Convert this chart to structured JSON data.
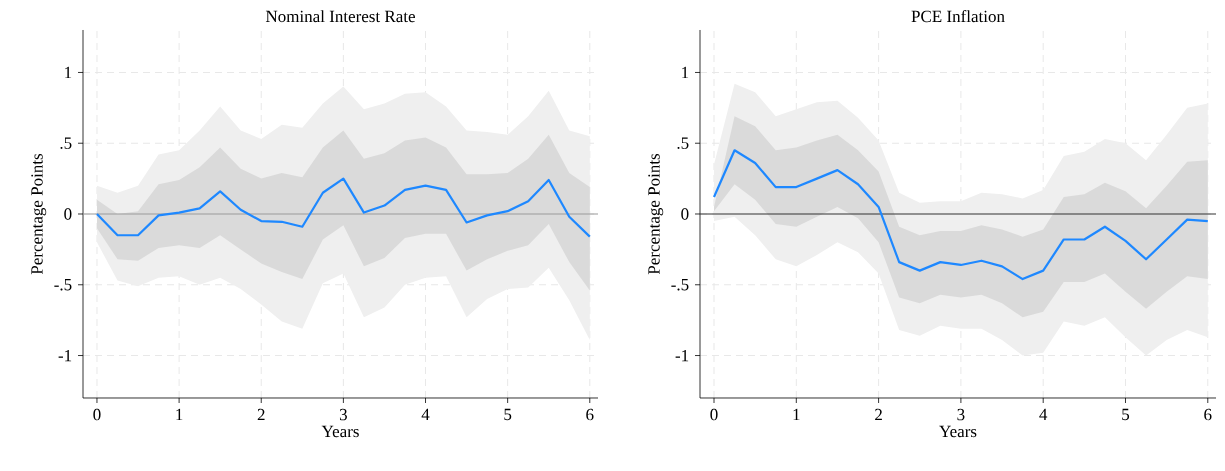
{
  "chart_data": [
    {
      "type": "line",
      "title": "Nominal Interest Rate",
      "xlabel": "Years",
      "ylabel": "Percentage Points",
      "x": [
        0,
        0.25,
        0.5,
        0.75,
        1,
        1.25,
        1.5,
        1.75,
        2,
        2.25,
        2.5,
        2.75,
        3,
        3.25,
        3.5,
        3.75,
        4,
        4.25,
        4.5,
        4.75,
        5,
        5.25,
        5.5,
        5.75,
        6
      ],
      "series": [
        {
          "color": "#efefef",
          "values": [
            null,
            null,
            null,
            null,
            null,
            null,
            null,
            null,
            null,
            null,
            null,
            null,
            null,
            null,
            null,
            null,
            null,
            null,
            null,
            null,
            null,
            null,
            null,
            null,
            null
          ],
          "upper": [
            0.2,
            0.15,
            0.2,
            0.42,
            0.45,
            0.59,
            0.76,
            0.59,
            0.53,
            0.63,
            0.61,
            0.78,
            0.9,
            0.74,
            0.78,
            0.85,
            0.86,
            0.76,
            0.59,
            0.58,
            0.56,
            0.69,
            0.87,
            0.59,
            0.55
          ],
          "lower": [
            -0.2,
            -0.47,
            -0.51,
            -0.45,
            -0.44,
            -0.5,
            -0.45,
            -0.53,
            -0.64,
            -0.76,
            -0.81,
            -0.49,
            -0.42,
            -0.73,
            -0.66,
            -0.5,
            -0.45,
            -0.44,
            -0.73,
            -0.6,
            -0.53,
            -0.52,
            -0.38,
            -0.61,
            -0.89
          ]
        },
        {
          "color": "#dadada",
          "values": [
            null,
            null,
            null,
            null,
            null,
            null,
            null,
            null,
            null,
            null,
            null,
            null,
            null,
            null,
            null,
            null,
            null,
            null,
            null,
            null,
            null,
            null,
            null,
            null,
            null
          ],
          "upper": [
            0.1,
            0.0,
            0.02,
            0.21,
            0.24,
            0.33,
            0.47,
            0.32,
            0.25,
            0.29,
            0.26,
            0.47,
            0.59,
            0.39,
            0.43,
            0.52,
            0.54,
            0.47,
            0.28,
            0.28,
            0.29,
            0.39,
            0.56,
            0.29,
            0.19
          ],
          "lower": [
            -0.1,
            -0.32,
            -0.33,
            -0.24,
            -0.22,
            -0.24,
            -0.15,
            -0.25,
            -0.35,
            -0.41,
            -0.46,
            -0.18,
            -0.08,
            -0.37,
            -0.31,
            -0.17,
            -0.14,
            -0.14,
            -0.4,
            -0.32,
            -0.26,
            -0.22,
            -0.07,
            -0.34,
            -0.54
          ]
        },
        {
          "color": "#1e88ff",
          "values": [
            0,
            -0.15,
            -0.15,
            -0.01,
            0.01,
            0.04,
            0.16,
            0.03,
            -0.05,
            -0.055,
            -0.09,
            0.15,
            0.25,
            0.01,
            0.06,
            0.17,
            0.2,
            0.17,
            -0.06,
            -0.01,
            0.02,
            0.09,
            0.24,
            -0.02,
            -0.16
          ]
        }
      ],
      "xlim": [
        -0.17,
        6.1
      ],
      "ylim": [
        -1.3,
        1.3
      ],
      "xticks": [
        0,
        1,
        2,
        3,
        4,
        5,
        6
      ],
      "yticks": [
        {
          "value": -1,
          "label": "-1"
        },
        {
          "value": -0.5,
          "label": "-.5"
        },
        {
          "value": 0,
          "label": "0"
        },
        {
          "value": 0.5,
          "label": ".5"
        },
        {
          "value": 1,
          "label": "1"
        }
      ],
      "ref_lines": [
        {
          "axis": "y",
          "value": 0,
          "color": "#9a9a9a"
        }
      ],
      "grid": true,
      "line_style": "solid",
      "marker": "none"
    },
    {
      "type": "line",
      "title": "PCE Inflation",
      "xlabel": "Years",
      "ylabel": "Percentage Points",
      "x": [
        0,
        0.25,
        0.5,
        0.75,
        1,
        1.25,
        1.5,
        1.75,
        2,
        2.25,
        2.5,
        2.75,
        3,
        3.25,
        3.5,
        3.75,
        4,
        4.25,
        4.5,
        4.75,
        5,
        5.25,
        5.5,
        5.75,
        6
      ],
      "series": [
        {
          "color": "#efefef",
          "values": [
            null,
            null,
            null,
            null,
            null,
            null,
            null,
            null,
            null,
            null,
            null,
            null,
            null,
            null,
            null,
            null,
            null,
            null,
            null,
            null,
            null,
            null,
            null,
            null,
            null
          ],
          "upper": [
            0.35,
            0.92,
            0.86,
            0.69,
            0.74,
            0.79,
            0.8,
            0.68,
            0.52,
            0.15,
            0.08,
            0.09,
            0.09,
            0.15,
            0.14,
            0.11,
            0.17,
            0.41,
            0.44,
            0.53,
            0.5,
            0.38,
            0.56,
            0.75,
            0.78
          ],
          "lower": [
            -0.05,
            -0.02,
            -0.15,
            -0.32,
            -0.37,
            -0.29,
            -0.2,
            -0.27,
            -0.42,
            -0.82,
            -0.86,
            -0.79,
            -0.81,
            -0.81,
            -0.89,
            -1.0,
            -0.98,
            -0.76,
            -0.79,
            -0.73,
            -0.87,
            -1.0,
            -0.89,
            -0.82,
            -0.87
          ]
        },
        {
          "color": "#dadada",
          "values": [
            null,
            null,
            null,
            null,
            null,
            null,
            null,
            null,
            null,
            null,
            null,
            null,
            null,
            null,
            null,
            null,
            null,
            null,
            null,
            null,
            null,
            null,
            null,
            null,
            null
          ],
          "upper": [
            0.05,
            0.69,
            0.62,
            0.45,
            0.47,
            0.52,
            0.56,
            0.45,
            0.3,
            -0.09,
            -0.15,
            -0.12,
            -0.12,
            -0.08,
            -0.11,
            -0.16,
            -0.11,
            0.12,
            0.14,
            0.22,
            0.16,
            0.04,
            0.2,
            0.37,
            0.38
          ],
          "lower": [
            0.02,
            0.21,
            0.1,
            -0.07,
            -0.09,
            -0.02,
            0.05,
            -0.03,
            -0.2,
            -0.59,
            -0.63,
            -0.57,
            -0.59,
            -0.57,
            -0.63,
            -0.73,
            -0.69,
            -0.48,
            -0.48,
            -0.42,
            -0.55,
            -0.67,
            -0.55,
            -0.44,
            -0.46
          ]
        },
        {
          "color": "#1e88ff",
          "values": [
            0.12,
            0.45,
            0.36,
            0.19,
            0.19,
            0.25,
            0.31,
            0.21,
            0.05,
            -0.34,
            -0.4,
            -0.34,
            -0.36,
            -0.33,
            -0.37,
            -0.46,
            -0.4,
            -0.18,
            -0.18,
            -0.09,
            -0.19,
            -0.32,
            -0.18,
            -0.04,
            -0.05
          ]
        }
      ],
      "xlim": [
        -0.17,
        6.1
      ],
      "ylim": [
        -1.3,
        1.3
      ],
      "xticks": [
        0,
        1,
        2,
        3,
        4,
        5,
        6
      ],
      "yticks": [
        {
          "value": -1,
          "label": "-1"
        },
        {
          "value": -0.5,
          "label": "-.5"
        },
        {
          "value": 0,
          "label": "0"
        },
        {
          "value": 0.5,
          "label": ".5"
        },
        {
          "value": 1,
          "label": "1"
        }
      ],
      "ref_lines": [
        {
          "axis": "y",
          "value": 0,
          "color": "#333333"
        }
      ],
      "grid": true,
      "line_style": "solid",
      "marker": "none"
    }
  ]
}
